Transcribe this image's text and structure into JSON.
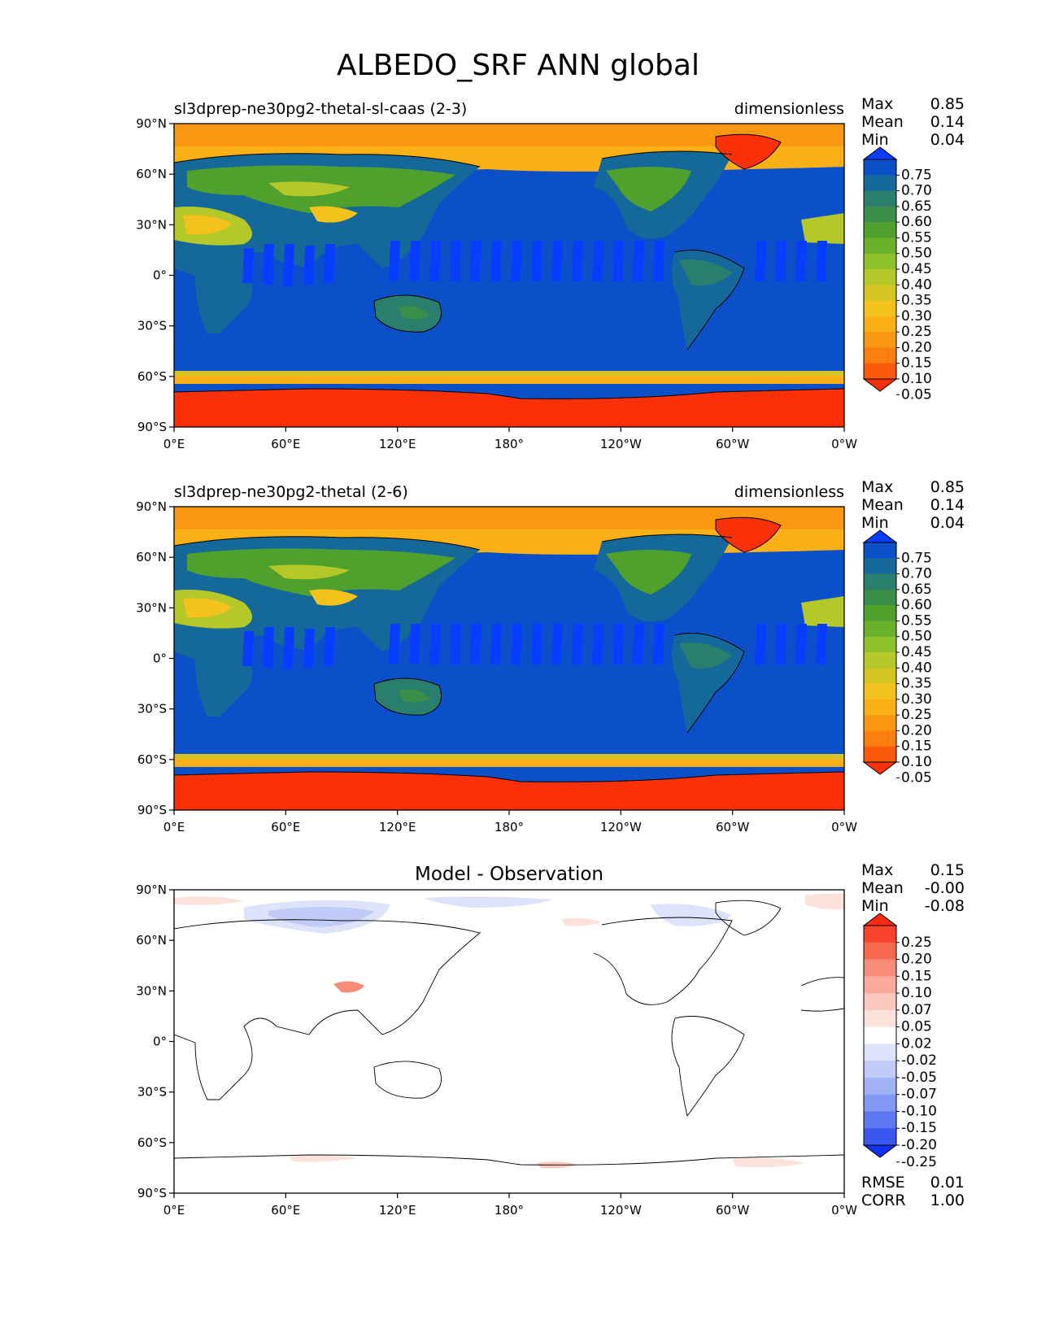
{
  "figure": {
    "title": "ALBEDO_SRF ANN global"
  },
  "chart_data": [
    {
      "type": "heatmap",
      "left_title": "sl3dprep-ne30pg2-thetal-sl-caas (2-3)",
      "right_title": "dimensionless",
      "x_tick_labels": [
        "0°E",
        "60°E",
        "120°E",
        "180°",
        "120°W",
        "60°W",
        "0°W"
      ],
      "y_tick_labels": [
        "90°N",
        "60°N",
        "30°N",
        "0°",
        "30°S",
        "60°S",
        "90°S"
      ],
      "xlim": [
        0,
        360
      ],
      "ylim": [
        -90,
        90
      ],
      "stats": [
        {
          "label": "Max",
          "value": "0.85"
        },
        {
          "label": "Mean",
          "value": "0.14"
        },
        {
          "label": "Min",
          "value": "0.04"
        }
      ],
      "colorbar": {
        "levels": [
          "0.05",
          "0.10",
          "0.15",
          "0.20",
          "0.25",
          "0.30",
          "0.35",
          "0.40",
          "0.45",
          "0.50",
          "0.55",
          "0.60",
          "0.65",
          "0.70",
          "0.75"
        ],
        "colors": [
          "#0a3cff",
          "#0b50c8",
          "#15699a",
          "#2a7e6e",
          "#3a8e4a",
          "#4fa02c",
          "#6ab22a",
          "#8ec22a",
          "#b4c82a",
          "#d4c424",
          "#f4c21c",
          "#fbb018",
          "#fb9812",
          "#fb7e0e",
          "#fb5a0a",
          "#fa3008"
        ],
        "extend": "both"
      }
    },
    {
      "type": "heatmap",
      "left_title": "sl3dprep-ne30pg2-thetal (2-6)",
      "right_title": "dimensionless",
      "x_tick_labels": [
        "0°E",
        "60°E",
        "120°E",
        "180°",
        "120°W",
        "60°W",
        "0°W"
      ],
      "y_tick_labels": [
        "90°N",
        "60°N",
        "30°N",
        "0°",
        "30°S",
        "60°S",
        "90°S"
      ],
      "xlim": [
        0,
        360
      ],
      "ylim": [
        -90,
        90
      ],
      "stats": [
        {
          "label": "Max",
          "value": "0.85"
        },
        {
          "label": "Mean",
          "value": "0.14"
        },
        {
          "label": "Min",
          "value": "0.04"
        }
      ],
      "colorbar": {
        "levels": [
          "0.05",
          "0.10",
          "0.15",
          "0.20",
          "0.25",
          "0.30",
          "0.35",
          "0.40",
          "0.45",
          "0.50",
          "0.55",
          "0.60",
          "0.65",
          "0.70",
          "0.75"
        ],
        "colors": [
          "#0a3cff",
          "#0b50c8",
          "#15699a",
          "#2a7e6e",
          "#3a8e4a",
          "#4fa02c",
          "#6ab22a",
          "#8ec22a",
          "#b4c82a",
          "#d4c424",
          "#f4c21c",
          "#fbb018",
          "#fb9812",
          "#fb7e0e",
          "#fb5a0a",
          "#fa3008"
        ],
        "extend": "both"
      }
    },
    {
      "type": "heatmap",
      "center_title": "Model - Observation",
      "x_tick_labels": [
        "0°E",
        "60°E",
        "120°E",
        "180°",
        "120°W",
        "60°W",
        "0°W"
      ],
      "y_tick_labels": [
        "90°N",
        "60°N",
        "30°N",
        "0°",
        "30°S",
        "60°S",
        "90°S"
      ],
      "xlim": [
        0,
        360
      ],
      "ylim": [
        -90,
        90
      ],
      "stats": [
        {
          "label": "Max",
          "value": "0.15"
        },
        {
          "label": "Mean",
          "value": "-0.00"
        },
        {
          "label": "Min",
          "value": "-0.08"
        }
      ],
      "bottom_stats": [
        {
          "label": "RMSE",
          "value": "0.01"
        },
        {
          "label": "CORR",
          "value": "1.00"
        }
      ],
      "colorbar": {
        "levels": [
          "0.25",
          "0.20",
          "0.15",
          "0.10",
          "0.07",
          "0.05",
          "0.02",
          "-0.02",
          "-0.05",
          "-0.07",
          "-0.10",
          "-0.15",
          "-0.20",
          "-0.25"
        ],
        "colors": [
          "#fa2a12",
          "#f8442a",
          "#f76850",
          "#f88c78",
          "#f9aa9a",
          "#fbc8be",
          "#fde2dc",
          "#ffffff",
          "#dde3fb",
          "#c0cbf8",
          "#a2b2f6",
          "#8298f4",
          "#5e78f2",
          "#3a58f0",
          "#1230ee"
        ],
        "extend": "both"
      }
    }
  ]
}
